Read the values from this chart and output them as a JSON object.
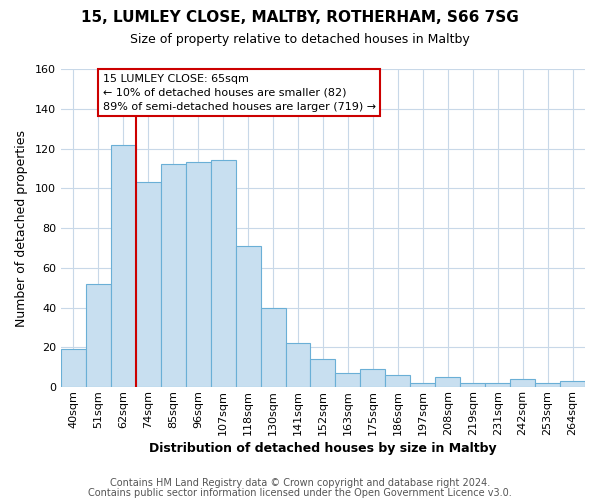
{
  "title1": "15, LUMLEY CLOSE, MALTBY, ROTHERHAM, S66 7SG",
  "title2": "Size of property relative to detached houses in Maltby",
  "xlabel": "Distribution of detached houses by size in Maltby",
  "ylabel": "Number of detached properties",
  "bar_labels": [
    "40sqm",
    "51sqm",
    "62sqm",
    "74sqm",
    "85sqm",
    "96sqm",
    "107sqm",
    "118sqm",
    "130sqm",
    "141sqm",
    "152sqm",
    "163sqm",
    "175sqm",
    "186sqm",
    "197sqm",
    "208sqm",
    "219sqm",
    "231sqm",
    "242sqm",
    "253sqm",
    "264sqm"
  ],
  "bar_values": [
    19,
    52,
    122,
    103,
    112,
    113,
    114,
    71,
    40,
    22,
    14,
    7,
    9,
    6,
    2,
    5,
    2,
    2,
    4,
    2,
    3
  ],
  "bar_color": "#c8dff0",
  "bar_edge_color": "#6aafd6",
  "vline_x_idx": 2,
  "vline_color": "#cc0000",
  "ylim": [
    0,
    160
  ],
  "yticks": [
    0,
    20,
    40,
    60,
    80,
    100,
    120,
    140,
    160
  ],
  "annotation_title": "15 LUMLEY CLOSE: 65sqm",
  "annotation_line1": "← 10% of detached houses are smaller (82)",
  "annotation_line2": "89% of semi-detached houses are larger (719) →",
  "footer1": "Contains HM Land Registry data © Crown copyright and database right 2024.",
  "footer2": "Contains public sector information licensed under the Open Government Licence v3.0.",
  "bg_color": "#ffffff",
  "plot_bg_color": "#ffffff",
  "grid_color": "#c8d8e8",
  "title_fontsize": 11,
  "subtitle_fontsize": 9,
  "xlabel_fontsize": 9,
  "ylabel_fontsize": 9,
  "tick_fontsize": 8,
  "ann_fontsize": 8,
  "footer_fontsize": 7
}
